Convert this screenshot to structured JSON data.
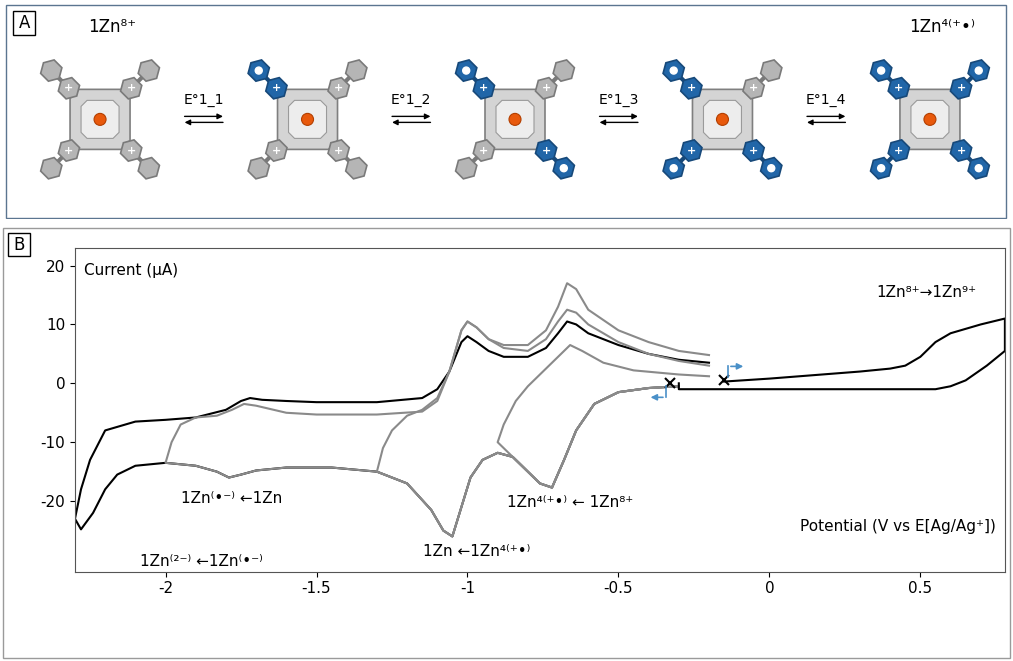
{
  "diagram": {
    "panel_label": "A",
    "arm_charge": "+",
    "species": [
      {
        "label": "1Zn⁸⁺",
        "reduced_arms": 0
      },
      {
        "reduced_arms": 1
      },
      {
        "reduced_arms": 2
      },
      {
        "reduced_arms": 3
      },
      {
        "label": "1Zn⁴⁽⁺•⁾",
        "reduced_arms": 4
      }
    ],
    "equilibria": [
      "E°1_1",
      "E°1_2",
      "E°1_3",
      "E°1_4"
    ]
  },
  "chart_data": {
    "type": "line",
    "panel_label": "B",
    "y_label": "Current (µA)",
    "x_label": "Potential (V vs E[Ag/Ag⁺])",
    "xlim": [
      -2.3,
      0.78
    ],
    "ylim": [
      -32,
      23
    ],
    "xticks": [
      -2,
      -1.5,
      -1,
      -0.5,
      0,
      0.5
    ],
    "yticks": [
      -20,
      -10,
      0,
      10,
      20
    ],
    "series": [
      {
        "color": "#000000",
        "x": [
          -0.3,
          -0.4,
          -0.5,
          -0.58,
          -0.64,
          -0.68,
          -0.72,
          -0.76,
          -0.8,
          -0.85,
          -0.9,
          -0.95,
          -0.99,
          -1.02,
          -1.05,
          -1.08,
          -1.12,
          -1.2,
          -1.3,
          -1.45,
          -1.6,
          -1.7,
          -1.75,
          -1.79,
          -1.83,
          -1.9,
          -2.0,
          -2.1,
          -2.16,
          -2.2,
          -2.24,
          -2.28,
          -2.3,
          -2.28,
          -2.25,
          -2.2,
          -2.1,
          -2.0,
          -1.9,
          -1.8,
          -1.75,
          -1.72,
          -1.68,
          -1.6,
          -1.5,
          -1.3,
          -1.15,
          -1.1,
          -1.06,
          -1.02,
          -1.0,
          -0.97,
          -0.93,
          -0.88,
          -0.8,
          -0.74,
          -0.7,
          -0.67,
          -0.64,
          -0.6,
          -0.5,
          -0.4,
          -0.3,
          -0.2
        ],
        "values": [
          -0.5,
          -0.8,
          -1.5,
          -3.5,
          -8,
          -13,
          -17.7,
          -17,
          -15,
          -12.5,
          -11.8,
          -13,
          -16,
          -21,
          -26,
          -25,
          -21.5,
          -17,
          -15,
          -14.3,
          -14.3,
          -14.8,
          -15.5,
          -16,
          -15,
          -14,
          -13.5,
          -14,
          -15.5,
          -18,
          -22,
          -24.8,
          -23,
          -18,
          -13,
          -8,
          -6.5,
          -6.2,
          -5.8,
          -4.5,
          -3,
          -2.5,
          -2.8,
          -3,
          -3.2,
          -3.2,
          -2.5,
          -1,
          2,
          7,
          8,
          7,
          5.5,
          4.5,
          4.5,
          6,
          8.5,
          10.5,
          10,
          8.5,
          6.5,
          5,
          4,
          3.5
        ]
      },
      {
        "color": "#8a8a8a",
        "x": [
          -0.3,
          -0.4,
          -0.5,
          -0.58,
          -0.64,
          -0.68,
          -0.72,
          -0.76,
          -0.8,
          -0.85,
          -0.9,
          -0.88,
          -0.84,
          -0.8,
          -0.75,
          -0.7,
          -0.66,
          -0.62,
          -0.55,
          -0.45,
          -0.3,
          -0.2
        ],
        "values": [
          -0.5,
          -0.8,
          -1.5,
          -3.5,
          -8,
          -13,
          -17.7,
          -17,
          -15,
          -12.5,
          -10,
          -7,
          -3,
          -0.5,
          2,
          4.5,
          6.5,
          5.5,
          3.5,
          2.2,
          1.5,
          1.2
        ]
      },
      {
        "color": "#8a8a8a",
        "x": [
          -0.3,
          -0.4,
          -0.5,
          -0.58,
          -0.64,
          -0.68,
          -0.72,
          -0.76,
          -0.8,
          -0.85,
          -0.9,
          -0.95,
          -0.99,
          -1.02,
          -1.05,
          -1.08,
          -1.12,
          -1.2,
          -1.3,
          -1.28,
          -1.25,
          -1.2,
          -1.15,
          -1.1,
          -1.06,
          -1.02,
          -1.0,
          -0.97,
          -0.93,
          -0.88,
          -0.8,
          -0.74,
          -0.7,
          -0.67,
          -0.64,
          -0.6,
          -0.5,
          -0.4,
          -0.3,
          -0.2
        ],
        "values": [
          -0.5,
          -0.8,
          -1.5,
          -3.5,
          -8,
          -13,
          -17.7,
          -17,
          -15,
          -12.5,
          -11.8,
          -13,
          -16,
          -21,
          -26,
          -25,
          -21.5,
          -17,
          -15,
          -11,
          -8,
          -5.5,
          -4.5,
          -2.5,
          2,
          9,
          10.5,
          9.5,
          7.5,
          6.5,
          6.5,
          9,
          13,
          17,
          16,
          12.5,
          9,
          7,
          5.5,
          4.8
        ]
      },
      {
        "color": "#8a8a8a",
        "x": [
          -0.3,
          -0.4,
          -0.5,
          -0.58,
          -0.64,
          -0.68,
          -0.72,
          -0.76,
          -0.8,
          -0.85,
          -0.9,
          -0.95,
          -0.99,
          -1.02,
          -1.05,
          -1.08,
          -1.12,
          -1.2,
          -1.3,
          -1.45,
          -1.6,
          -1.7,
          -1.75,
          -1.79,
          -1.83,
          -1.9,
          -2.0,
          -1.98,
          -1.95,
          -1.9,
          -1.83,
          -1.78,
          -1.74,
          -1.7,
          -1.6,
          -1.5,
          -1.3,
          -1.15,
          -1.1,
          -1.06,
          -1.02,
          -1.0,
          -0.97,
          -0.93,
          -0.88,
          -0.8,
          -0.74,
          -0.7,
          -0.67,
          -0.64,
          -0.6,
          -0.5,
          -0.4,
          -0.3,
          -0.2
        ],
        "values": [
          -0.5,
          -0.8,
          -1.5,
          -3.5,
          -8,
          -13,
          -17.7,
          -17,
          -15,
          -12.5,
          -11.8,
          -13,
          -16,
          -21,
          -26,
          -25,
          -21.5,
          -17,
          -15,
          -14.3,
          -14.3,
          -14.8,
          -15.5,
          -16,
          -15,
          -14,
          -13.5,
          -10,
          -7,
          -5.8,
          -5.5,
          -4.5,
          -3.5,
          -3.8,
          -5,
          -5.3,
          -5.3,
          -4.8,
          -3,
          2,
          9,
          10.5,
          9.5,
          7.5,
          6,
          5.5,
          7.5,
          10.5,
          12.5,
          12,
          10,
          7,
          5,
          3.8,
          3
        ]
      },
      {
        "color": "#000000",
        "x": [
          -0.15,
          0,
          0.1,
          0.2,
          0.3,
          0.4,
          0.45,
          0.5,
          0.55,
          0.6,
          0.7,
          0.78,
          0.78,
          0.72,
          0.65,
          0.6,
          0.55,
          0.4,
          0.2,
          0,
          -0.2,
          -0.3,
          -0.3
        ],
        "values": [
          0.3,
          0.8,
          1.2,
          1.6,
          2,
          2.5,
          3,
          4.5,
          7,
          8.5,
          10,
          11,
          5.5,
          3,
          0.5,
          -0.5,
          -1,
          -1,
          -1,
          -1,
          -1,
          -1,
          0
        ]
      }
    ],
    "annotations": [
      {
        "text": "1Zn⁸⁺→1Zn⁹⁺",
        "x": 0.52,
        "y": 15.5
      },
      {
        "text": "1Zn⁽•⁻⁾ ←1Zn",
        "x": -1.78,
        "y": -19.5
      },
      {
        "text": "1Zn⁽²⁻⁾ ←1Zn⁽•⁻⁾",
        "x": -1.88,
        "y": -30.2
      },
      {
        "text": "1Zn ←1Zn⁴⁽⁺•⁾",
        "x": -0.97,
        "y": -28.5
      },
      {
        "text": "1Zn⁴⁽⁺•⁾ ← 1Zn⁸⁺",
        "x": -0.66,
        "y": -20.3
      }
    ],
    "scan_starts": {
      "marker": "x",
      "points": [
        {
          "x": -0.33,
          "y": 0
        },
        {
          "x": -0.15,
          "y": 0.5
        }
      ]
    }
  }
}
